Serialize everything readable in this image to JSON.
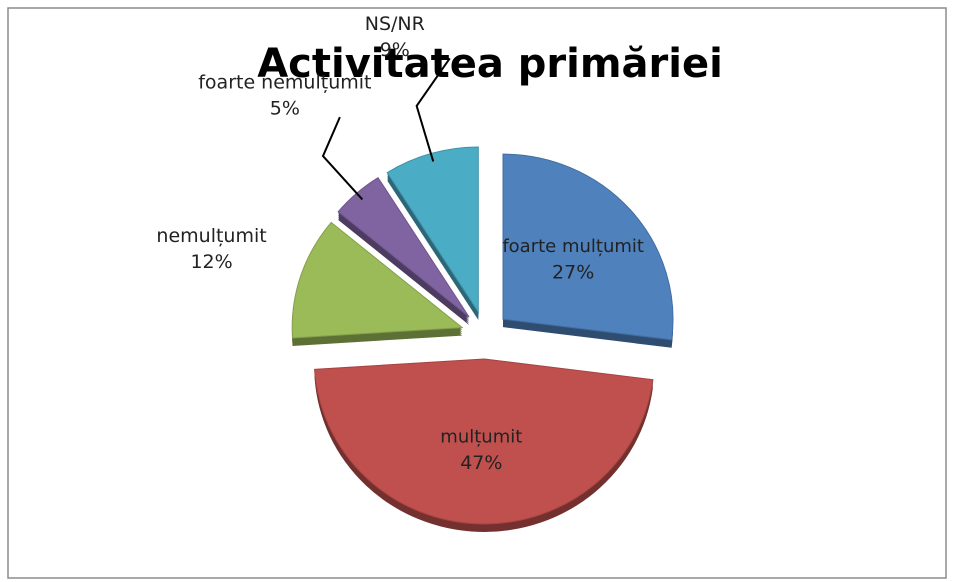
{
  "chart_data": {
    "type": "pie",
    "title": "Activitatea primăriei",
    "categories": [
      "foarte mulțumit",
      "mulțumit",
      "nemulțumit",
      "foarte nemulțumit",
      "NS/NR"
    ],
    "values": [
      27,
      47,
      12,
      5,
      9
    ],
    "value_labels": [
      "27%",
      "47%",
      "12%",
      "5%",
      "9%"
    ],
    "colors": [
      "#4f81bd",
      "#c0504d",
      "#9bbb59",
      "#8064a2",
      "#4bacc6"
    ]
  }
}
